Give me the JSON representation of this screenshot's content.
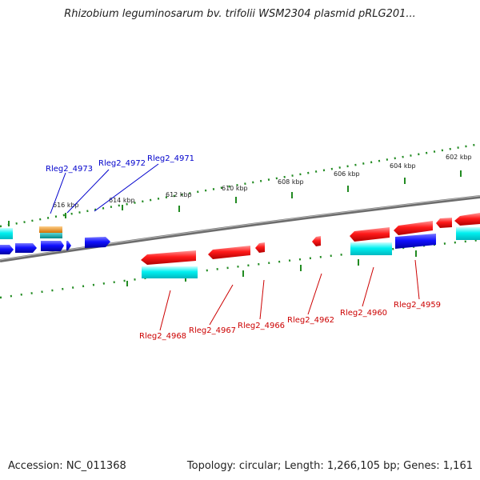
{
  "title": "Rhizobium leguminosarum bv. trifolii WSM2304 plasmid pRLG201...",
  "footer": {
    "accession": "Accession: NC_011368",
    "summary": "Topology: circular; Length: 1,266,105 bp; Genes: 1,161"
  },
  "colors": {
    "forward_cds": "#0000ee",
    "reverse_cds": "#ee0000",
    "cyan_track": "#00e5ee",
    "orange_track": "#f09010",
    "teal_track": "#10b0b0",
    "ticks": "#228b22",
    "backbone": "#808080",
    "forward_label": "#0000cc",
    "reverse_label": "#cc0000"
  },
  "scale": {
    "unit": "kbp",
    "tick_labels": [
      "616 kbp",
      "614 kbp",
      "612 kbp",
      "610 kbp",
      "608 kbp",
      "606 kbp",
      "604 kbp",
      "602 kbp"
    ]
  },
  "gene_labels": {
    "forward": [
      "Rleg2_4973",
      "Rleg2_4972",
      "Rleg2_4971"
    ],
    "reverse": [
      "Rleg2_4968",
      "Rleg2_4967",
      "Rleg2_4966",
      "Rleg2_4962",
      "Rleg2_4960",
      "Rleg2_4959"
    ]
  }
}
